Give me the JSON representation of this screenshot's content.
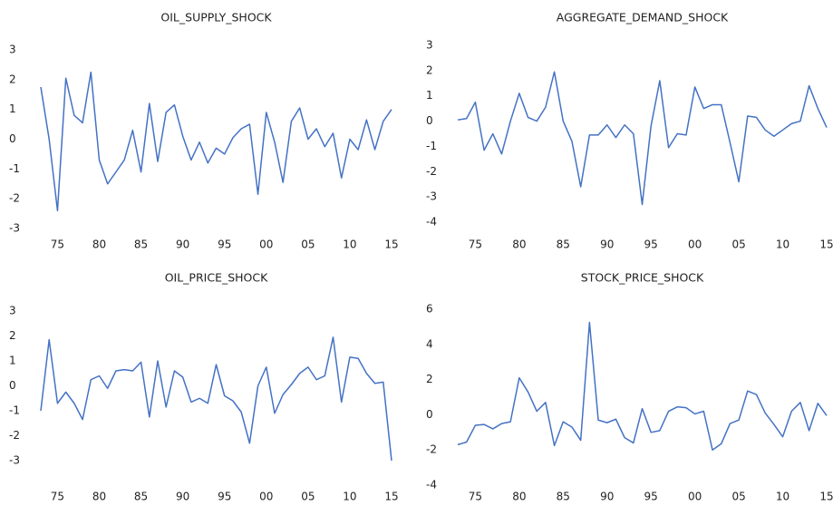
{
  "chart_data": [
    {
      "type": "line",
      "title": "OIL_SUPPLY_SHOCK",
      "x": [
        1973,
        1974,
        1975,
        1976,
        1977,
        1978,
        1979,
        1980,
        1981,
        1982,
        1983,
        1984,
        1985,
        1986,
        1987,
        1988,
        1989,
        1990,
        1991,
        1992,
        1993,
        1994,
        1995,
        1996,
        1997,
        1998,
        1999,
        2000,
        2001,
        2002,
        2003,
        2004,
        2005,
        2006,
        2007,
        2008,
        2009,
        2010,
        2011,
        2012,
        2013,
        2014,
        2015
      ],
      "series": [
        {
          "color": "#4472c4",
          "values": [
            1.75,
            0.0,
            -2.4,
            2.05,
            0.8,
            0.55,
            2.25,
            -0.7,
            -1.5,
            -1.1,
            -0.7,
            0.3,
            -1.1,
            1.2,
            -0.75,
            0.9,
            1.15,
            0.1,
            -0.7,
            -0.1,
            -0.8,
            -0.3,
            -0.5,
            0.05,
            0.35,
            0.5,
            -1.85,
            0.9,
            -0.1,
            -1.45,
            0.6,
            1.05,
            0.0,
            0.35,
            -0.25,
            0.2,
            -1.3,
            0.0,
            -0.35,
            0.65,
            -0.35,
            0.6,
            1.0
          ]
        }
      ],
      "xlim": [
        1973,
        2015
      ],
      "xticks": [
        {
          "value": 1975,
          "label": "75"
        },
        {
          "value": 1980,
          "label": "80"
        },
        {
          "value": 1985,
          "label": "85"
        },
        {
          "value": 1990,
          "label": "90"
        },
        {
          "value": 1995,
          "label": "95"
        },
        {
          "value": 2000,
          "label": "00"
        },
        {
          "value": 2005,
          "label": "05"
        },
        {
          "value": 2010,
          "label": "10"
        },
        {
          "value": 2015,
          "label": "15"
        }
      ],
      "ylim": [
        -3,
        3
      ],
      "yticks": [
        -3,
        -2,
        -1,
        0,
        1,
        2,
        3
      ]
    },
    {
      "type": "line",
      "title": "AGGREGATE_DEMAND_SHOCK",
      "x": [
        1973,
        1974,
        1975,
        1976,
        1977,
        1978,
        1979,
        1980,
        1981,
        1982,
        1983,
        1984,
        1985,
        1986,
        1987,
        1988,
        1989,
        1990,
        1991,
        1992,
        1993,
        1994,
        1995,
        1996,
        1997,
        1998,
        1999,
        2000,
        2001,
        2002,
        2003,
        2004,
        2005,
        2006,
        2007,
        2008,
        2009,
        2010,
        2011,
        2012,
        2013,
        2014,
        2015
      ],
      "series": [
        {
          "color": "#4472c4",
          "values": [
            0.05,
            0.1,
            0.75,
            -1.15,
            -0.5,
            -1.3,
            0.0,
            1.1,
            0.15,
            0.0,
            0.55,
            1.95,
            0.0,
            -0.8,
            -2.6,
            -0.55,
            -0.55,
            -0.15,
            -0.65,
            -0.15,
            -0.5,
            -3.3,
            -0.2,
            1.6,
            -1.05,
            -0.5,
            -0.55,
            1.35,
            0.5,
            0.65,
            0.65,
            -0.85,
            -2.4,
            0.2,
            0.15,
            -0.35,
            -0.6,
            -0.35,
            -0.1,
            0.0,
            1.4,
            0.5,
            -0.25
          ]
        }
      ],
      "xlim": [
        1973,
        2015
      ],
      "xticks": [
        {
          "value": 1975,
          "label": "75"
        },
        {
          "value": 1980,
          "label": "80"
        },
        {
          "value": 1985,
          "label": "85"
        },
        {
          "value": 1990,
          "label": "90"
        },
        {
          "value": 1995,
          "label": "95"
        },
        {
          "value": 2000,
          "label": "00"
        },
        {
          "value": 2005,
          "label": "05"
        },
        {
          "value": 2010,
          "label": "10"
        },
        {
          "value": 2015,
          "label": "15"
        }
      ],
      "ylim": [
        -4,
        3
      ],
      "yticks": [
        -4,
        -3,
        -2,
        -1,
        0,
        1,
        2,
        3
      ]
    },
    {
      "type": "line",
      "title": "OIL_PRICE_SHOCK",
      "x": [
        1973,
        1974,
        1975,
        1976,
        1977,
        1978,
        1979,
        1980,
        1981,
        1982,
        1983,
        1984,
        1985,
        1986,
        1987,
        1988,
        1989,
        1990,
        1991,
        1992,
        1993,
        1994,
        1995,
        1996,
        1997,
        1998,
        1999,
        2000,
        2001,
        2002,
        2003,
        2004,
        2005,
        2006,
        2007,
        2008,
        2009,
        2010,
        2011,
        2012,
        2013,
        2014,
        2015
      ],
      "series": [
        {
          "color": "#4472c4",
          "values": [
            -1.0,
            1.85,
            -0.7,
            -0.25,
            -0.7,
            -1.35,
            0.25,
            0.4,
            -0.1,
            0.6,
            0.65,
            0.6,
            0.95,
            -1.25,
            1.0,
            -0.85,
            0.6,
            0.35,
            -0.65,
            -0.5,
            -0.7,
            0.85,
            -0.4,
            -0.6,
            -1.05,
            -2.3,
            0.0,
            0.75,
            -1.1,
            -0.35,
            0.05,
            0.5,
            0.75,
            0.25,
            0.4,
            1.95,
            -0.65,
            1.15,
            1.1,
            0.5,
            0.1,
            0.15,
            -3.0
          ]
        }
      ],
      "xlim": [
        1973,
        2015
      ],
      "xticks": [
        {
          "value": 1975,
          "label": "75"
        },
        {
          "value": 1980,
          "label": "80"
        },
        {
          "value": 1985,
          "label": "85"
        },
        {
          "value": 1990,
          "label": "90"
        },
        {
          "value": 1995,
          "label": "95"
        },
        {
          "value": 2000,
          "label": "00"
        },
        {
          "value": 2005,
          "label": "05"
        },
        {
          "value": 2010,
          "label": "10"
        },
        {
          "value": 2015,
          "label": "15"
        }
      ],
      "ylim": [
        -3,
        3
      ],
      "yticks": [
        -3,
        -2,
        -1,
        0,
        1,
        2,
        3
      ]
    },
    {
      "type": "line",
      "title": "STOCK_PRICE_SHOCK",
      "x": [
        1973,
        1974,
        1975,
        1976,
        1977,
        1978,
        1979,
        1980,
        1981,
        1982,
        1983,
        1984,
        1985,
        1986,
        1987,
        1988,
        1989,
        1990,
        1991,
        1992,
        1993,
        1994,
        1995,
        1996,
        1997,
        1998,
        1999,
        2000,
        2001,
        2002,
        2003,
        2004,
        2005,
        2006,
        2007,
        2008,
        2009,
        2010,
        2011,
        2012,
        2013,
        2014,
        2015
      ],
      "series": [
        {
          "color": "#4472c4",
          "values": [
            -1.7,
            -1.55,
            -0.6,
            -0.55,
            -0.8,
            -0.5,
            -0.4,
            2.1,
            1.3,
            0.2,
            0.7,
            -1.75,
            -0.4,
            -0.7,
            -1.45,
            5.25,
            -0.3,
            -0.45,
            -0.25,
            -1.3,
            -1.6,
            0.35,
            -1.0,
            -0.9,
            0.2,
            0.45,
            0.4,
            0.05,
            0.2,
            -2.0,
            -1.65,
            -0.5,
            -0.3,
            1.35,
            1.15,
            0.1,
            -0.55,
            -1.25,
            0.2,
            0.7,
            -0.9,
            0.65,
            -0.05
          ]
        }
      ],
      "xlim": [
        1973,
        2015
      ],
      "xticks": [
        {
          "value": 1975,
          "label": "75"
        },
        {
          "value": 1980,
          "label": "80"
        },
        {
          "value": 1985,
          "label": "85"
        },
        {
          "value": 1990,
          "label": "90"
        },
        {
          "value": 1995,
          "label": "95"
        },
        {
          "value": 2000,
          "label": "00"
        },
        {
          "value": 2005,
          "label": "05"
        },
        {
          "value": 2010,
          "label": "10"
        },
        {
          "value": 2015,
          "label": "15"
        }
      ],
      "ylim": [
        -4,
        6
      ],
      "yticks": [
        -4,
        -2,
        0,
        2,
        4,
        6
      ]
    }
  ]
}
